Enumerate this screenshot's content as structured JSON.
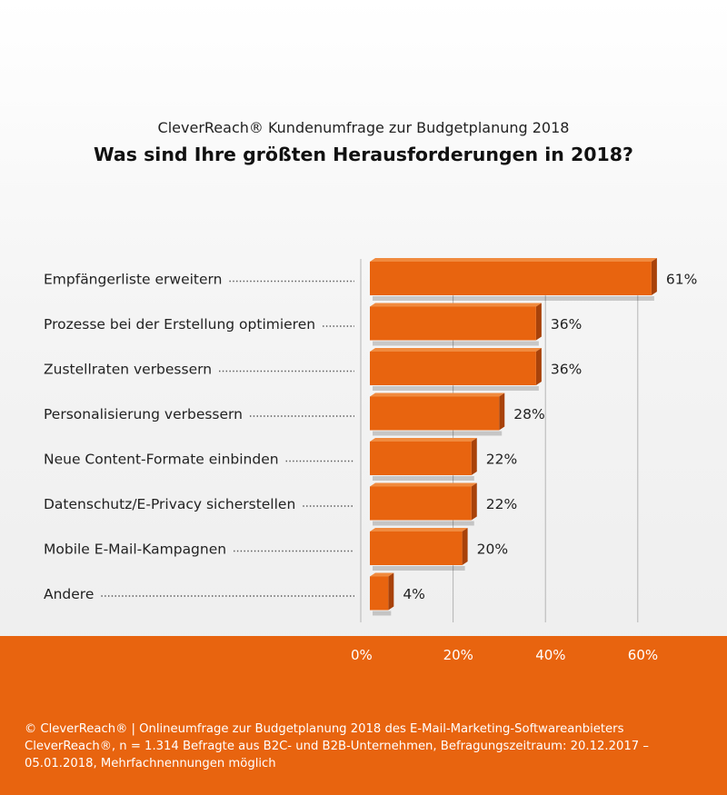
{
  "chart_data": {
    "type": "bar",
    "orientation": "horizontal",
    "subtitle": "CleverReach® Kundenumfrage zur Budgetplanung 2018",
    "title": "Was sind Ihre größten Herausforderungen in 2018?",
    "categories": [
      "Empfängerliste erweitern",
      "Prozesse bei der Erstellung optimieren",
      "Zustellraten verbessern",
      "Personalisierung verbessern",
      "Neue Content-Formate einbinden",
      "Datenschutz/E-Privacy sicherstellen",
      "Mobile E-Mail-Kampagnen",
      "Andere"
    ],
    "values": [
      61,
      36,
      36,
      28,
      22,
      22,
      20,
      4
    ],
    "value_labels": [
      "61%",
      "36%",
      "36%",
      "28%",
      "22%",
      "22%",
      "20%",
      "4%"
    ],
    "x_ticks": [
      0,
      20,
      40,
      60
    ],
    "x_tick_labels": [
      "0%",
      "20%",
      "40%",
      "60%"
    ],
    "xlim": [
      0,
      60
    ],
    "grid": true,
    "legend": "none"
  },
  "footer": {
    "source": "© CleverReach® | Onlineumfrage zur Budgetplanung 2018 des E-Mail-Marketing-Softwareanbieters CleverReach®, n = 1.314 Befragte aus B2C- und B2B-Unternehmen, Befragungszeitraum: 20.12.2017 – 05.01.2018, Mehrfachnennungen möglich"
  },
  "colors": {
    "bar": "#e8640f",
    "bar_side": "#a8420a",
    "bar_top": "#f08a3e",
    "band": "#e8640f",
    "grid": "#b5b5b5"
  }
}
